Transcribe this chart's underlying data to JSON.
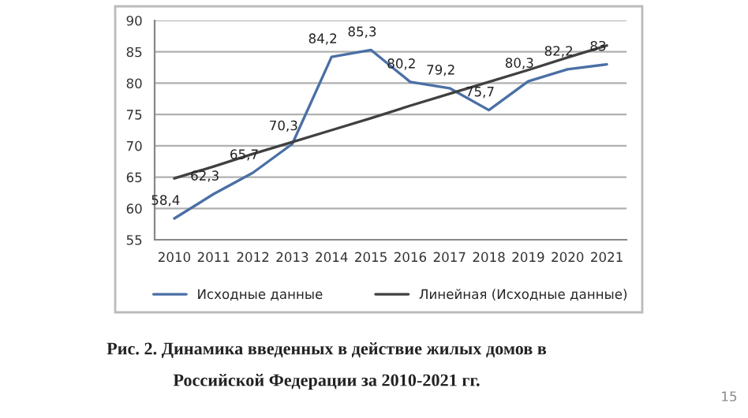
{
  "chart_data": {
    "type": "line",
    "categories": [
      "2010",
      "2011",
      "2012",
      "2013",
      "2014",
      "2015",
      "2016",
      "2017",
      "2018",
      "2019",
      "2020",
      "2021"
    ],
    "series": [
      {
        "name": "Исходные данные",
        "color": "#4a6fa5",
        "values": [
          58.4,
          62.3,
          65.7,
          70.3,
          84.2,
          85.3,
          80.2,
          79.2,
          75.7,
          80.3,
          82.2,
          83
        ],
        "value_labels": [
          "58,4",
          "62,3",
          "65,7",
          "70,3",
          "84,2",
          "85,3",
          "80,2",
          "79,2",
          "75,7",
          "80,3",
          "82,2",
          "83"
        ]
      },
      {
        "name": "Линейная (Исходные данные)",
        "color": "#404040",
        "values": [
          64.8,
          66.7,
          68.7,
          70.6,
          72.5,
          74.4,
          76.4,
          78.3,
          80.2,
          82.1,
          84.1,
          86.0
        ]
      }
    ],
    "ylim": [
      55,
      90
    ],
    "yticks": [
      55,
      60,
      65,
      70,
      75,
      80,
      85,
      90
    ],
    "grid": "y",
    "legend": "bottom",
    "marker": "none",
    "line_style": "solid",
    "annotations": [
      "Рис. 2. Динамика введенных в действие жилых домов в",
      "Российской Федерации за 2010-2021 гг.",
      "15"
    ]
  }
}
